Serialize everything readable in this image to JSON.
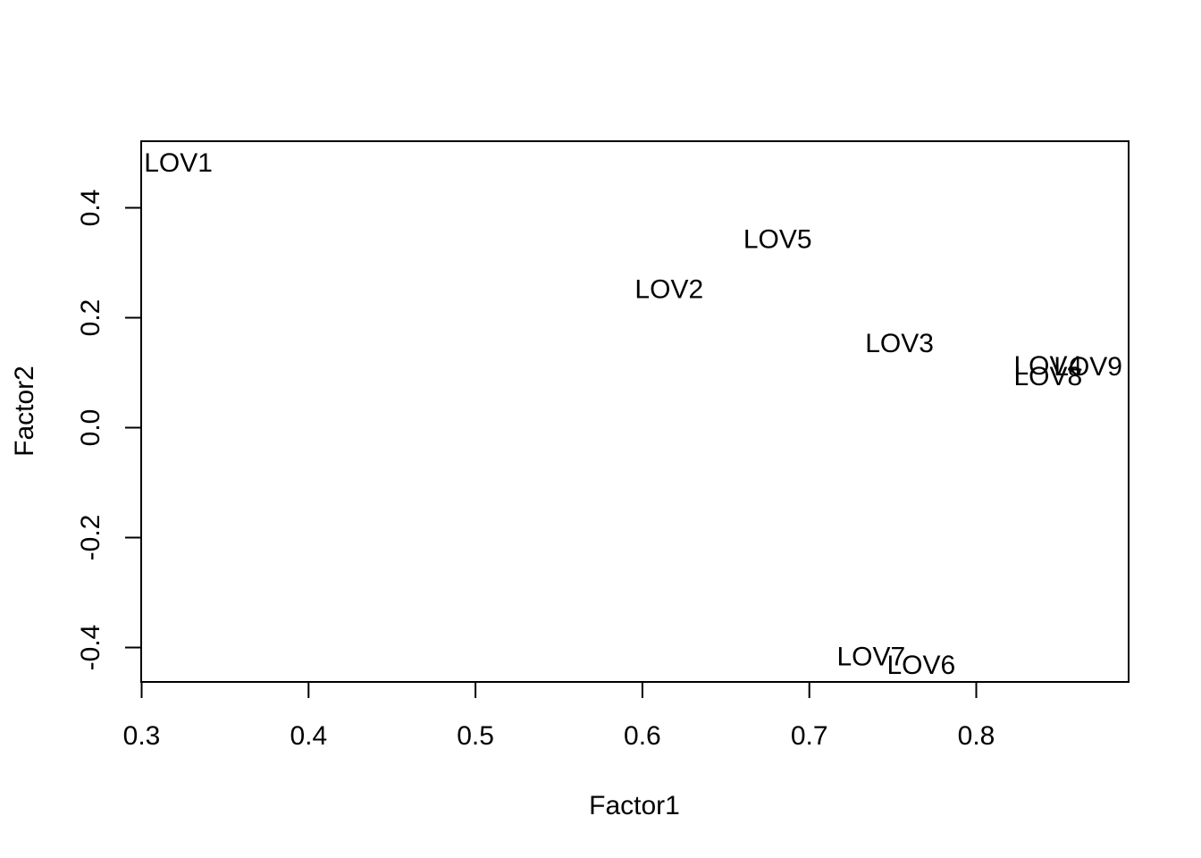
{
  "chart_data": {
    "type": "scatter",
    "marker": "text-labels",
    "xlabel": "Factor1",
    "ylabel": "Factor2",
    "xlim": [
      0.3,
      0.89
    ],
    "ylim": [
      -0.46,
      0.52
    ],
    "x_ticks": [
      0.3,
      0.4,
      0.5,
      0.6,
      0.7,
      0.8
    ],
    "x_tick_labels": [
      "0.3",
      "0.4",
      "0.5",
      "0.6",
      "0.7",
      "0.8"
    ],
    "y_ticks": [
      -0.4,
      -0.2,
      0.0,
      0.2,
      0.4
    ],
    "y_tick_labels": [
      "-0.4",
      "-0.2",
      "0.0",
      "0.2",
      "0.4"
    ],
    "grid": false,
    "points": [
      {
        "label": "LOV1",
        "x": 0.322,
        "y": 0.484
      },
      {
        "label": "LOV2",
        "x": 0.616,
        "y": 0.254
      },
      {
        "label": "LOV3",
        "x": 0.754,
        "y": 0.155
      },
      {
        "label": "LOV4",
        "x": 0.843,
        "y": 0.115
      },
      {
        "label": "LOV5",
        "x": 0.681,
        "y": 0.345
      },
      {
        "label": "LOV6",
        "x": 0.767,
        "y": -0.43
      },
      {
        "label": "LOV7",
        "x": 0.737,
        "y": -0.415
      },
      {
        "label": "LOV8",
        "x": 0.843,
        "y": 0.095
      },
      {
        "label": "LOV9",
        "x": 0.867,
        "y": 0.113
      }
    ],
    "colors": {
      "text": "#000000",
      "axes": "#000000",
      "background": "#ffffff"
    }
  }
}
